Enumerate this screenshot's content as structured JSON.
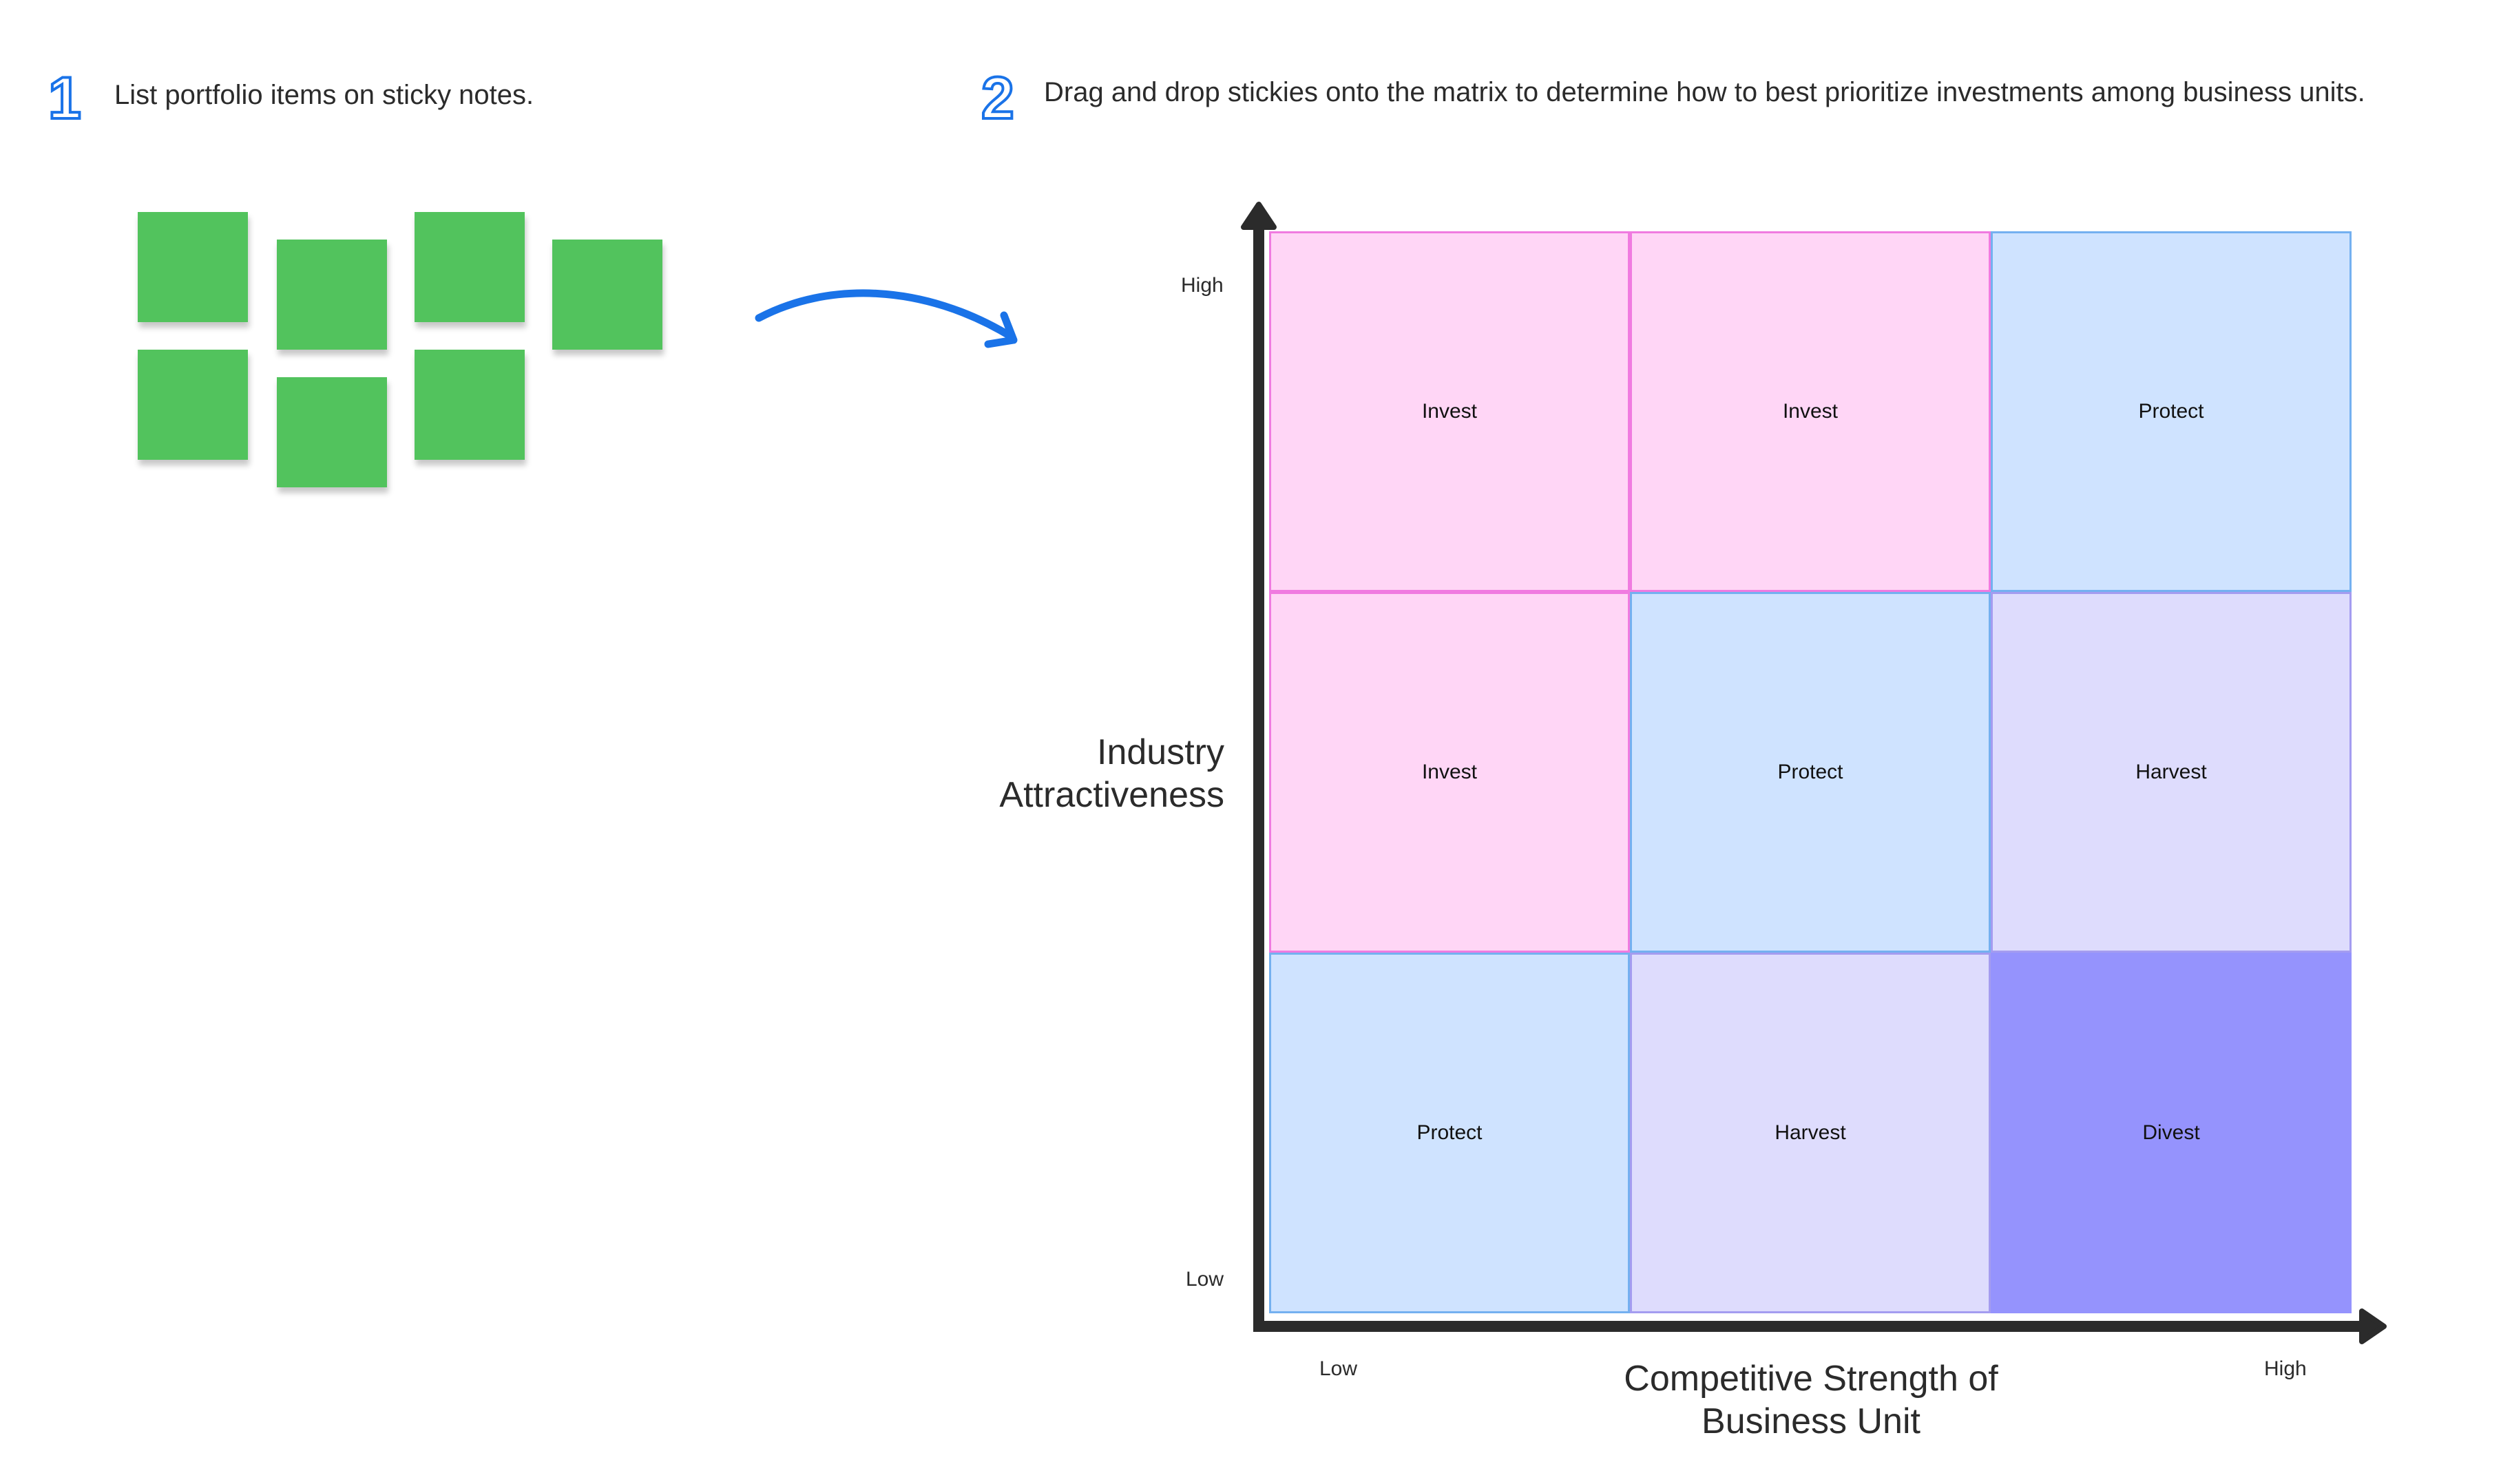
{
  "steps": [
    {
      "number": "1",
      "text": "List portfolio items on sticky notes."
    },
    {
      "number": "2",
      "text": "Drag and drop stickies onto the matrix to determine how to best prioritize investments among business units."
    }
  ],
  "colors": {
    "sticky": "#52c35d",
    "arrow": "#1a73e8",
    "invest": "#ffd6f6",
    "protect": "#cfe3ff",
    "harvest": "#dedcfd",
    "divest": "#9593fd"
  },
  "matrix": {
    "y_axis": {
      "title_line1": "Industry",
      "title_line2": "Attractiveness",
      "high": "High",
      "low": "Low"
    },
    "x_axis": {
      "title_line1": "Competitive Strength of",
      "title_line2": "Business Unit",
      "low": "Low",
      "high": "High"
    },
    "rows": [
      [
        "Invest",
        "Invest",
        "Protect"
      ],
      [
        "Invest",
        "Protect",
        "Harvest"
      ],
      [
        "Protect",
        "Harvest",
        "Divest"
      ]
    ]
  }
}
